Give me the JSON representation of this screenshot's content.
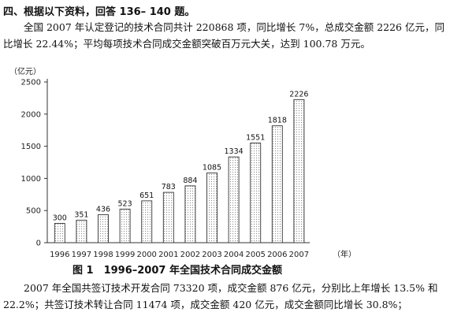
{
  "question": {
    "heading": "四、根据以下资料，回答 136– 140 题。",
    "paragraph1": "全国 2007 年认定登记的技术合同共计 220868 项，同比增长 7%，总成交金额 2226 亿元，同比增长 22.44%；平均每项技术合同成交金额突破百万元大关，达到 100.78 万元。",
    "paragraph2": "2007 年全国共签订技术开发合同 73320 项，成交金额 876 亿元，分别比上年增长 13.5% 和 22.2%；共签订技术转让合同 11474 项，成交金额 420 亿元，成交金额同比增长 30.8%；"
  },
  "chart_data": {
    "type": "bar",
    "title": "图 1　1996–2007 年全国技术合同成交金额",
    "ylabel": "（亿元）",
    "xlabel": "（年）",
    "categories": [
      "1996",
      "1997",
      "1998",
      "1999",
      "2000",
      "2001",
      "2002",
      "2003",
      "2004",
      "2005",
      "2006",
      "2007"
    ],
    "values": [
      300,
      351,
      436,
      523,
      651,
      783,
      884,
      1085,
      1334,
      1551,
      1818,
      2226
    ],
    "ylim": [
      0,
      2500
    ],
    "yticks": [
      0,
      500,
      1000,
      1500,
      2000,
      2500
    ],
    "grid": false,
    "legend": "none",
    "bar_fill": "#ffffff",
    "bar_stroke": "#333333"
  }
}
